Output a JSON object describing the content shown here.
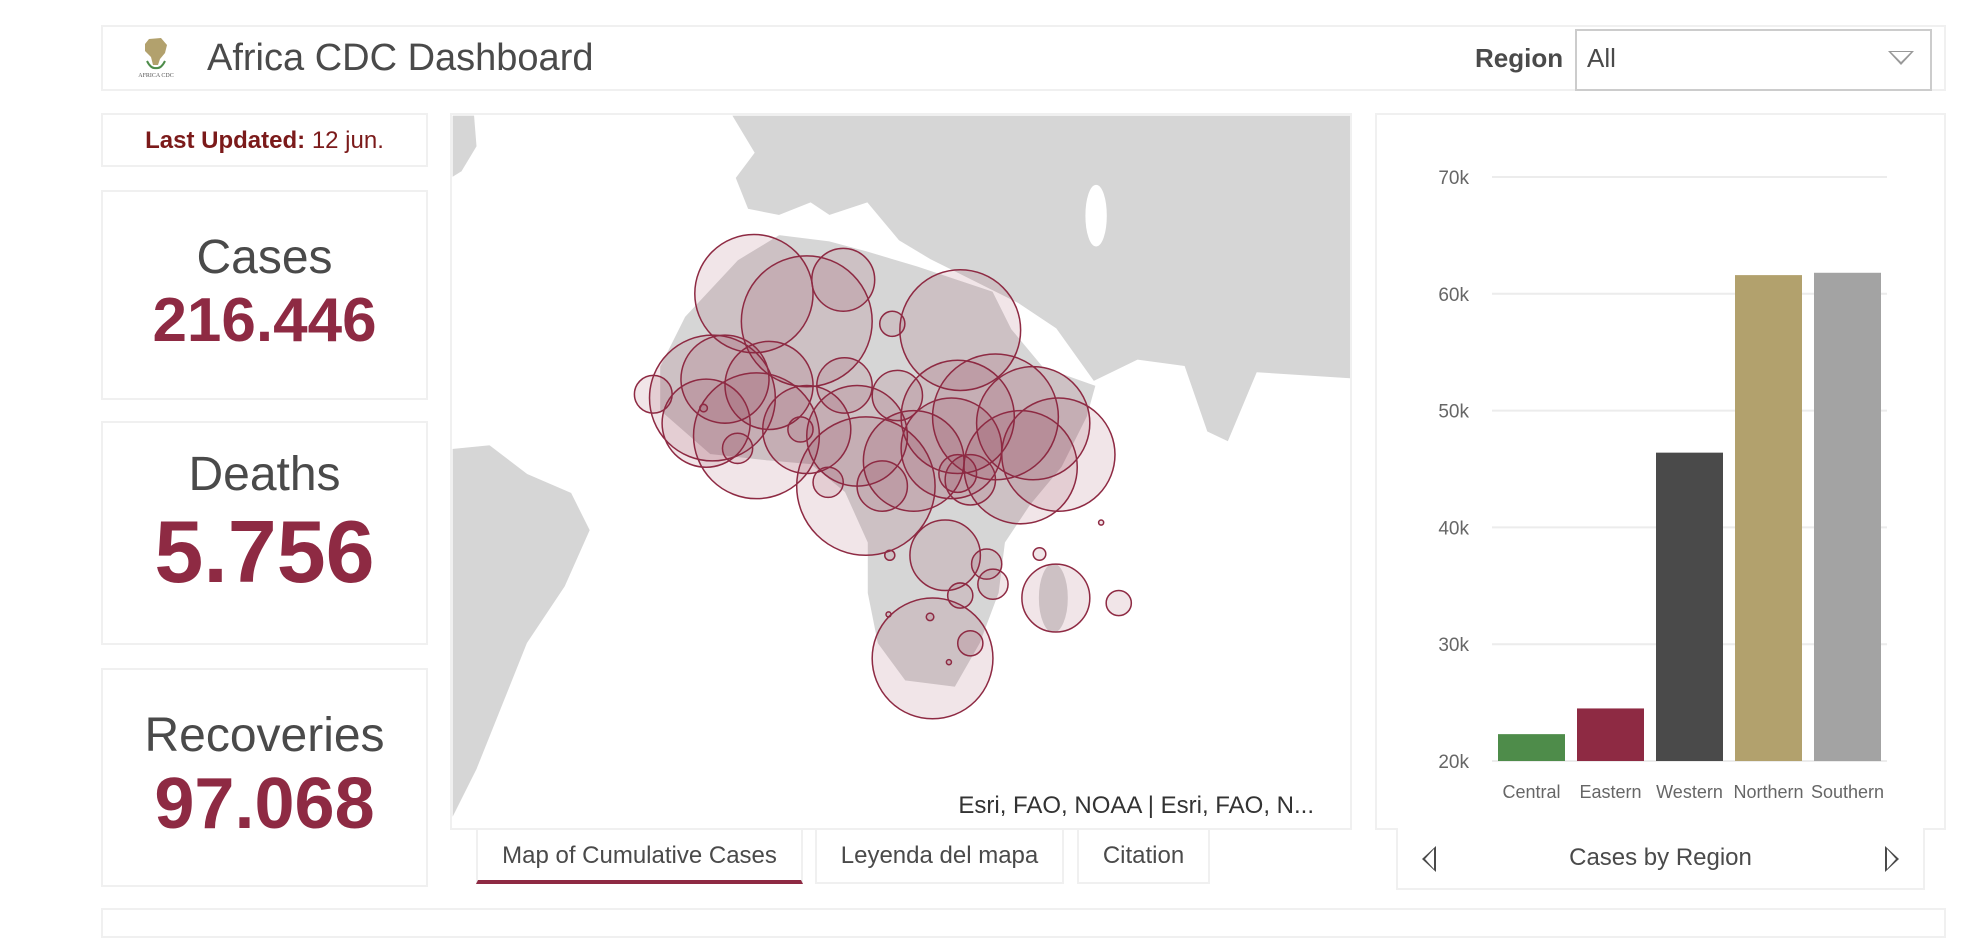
{
  "header": {
    "title": "Africa CDC Dashboard",
    "logo_text": "AFRICA CDC",
    "region_label": "Region",
    "region_value": "All"
  },
  "updated": {
    "label": "Last Updated:",
    "value": "12 jun."
  },
  "stats": {
    "cases": {
      "label": "Cases",
      "value": "216.446"
    },
    "deaths": {
      "label": "Deaths",
      "value": "5.756"
    },
    "recoveries": {
      "label": "Recoveries",
      "value": "97.068"
    }
  },
  "map": {
    "attribution": "Esri, FAO, NOAA | Esri, FAO, N...",
    "land_color": "#d6d6d6",
    "bubble_color": "#8e2a43"
  },
  "tabs": [
    {
      "label": "Map of Cumulative Cases",
      "active": true
    },
    {
      "label": "Leyenda del mapa"
    },
    {
      "label": "Citation"
    }
  ],
  "chart_footer": {
    "title": "Cases by Region",
    "prev_icon": "triangle-left-icon",
    "next_icon": "triangle-right-icon"
  },
  "chart_data": {
    "type": "bar",
    "categories": [
      "Central",
      "Eastern",
      "Western",
      "Northern",
      "Southern"
    ],
    "values": [
      22300,
      24500,
      46400,
      61600,
      61800
    ],
    "colors": [
      "#4e8c4a",
      "#8e2a43",
      "#4a4a4a",
      "#b2a16d",
      "#a3a3a3"
    ],
    "ylim": [
      20000,
      70000
    ],
    "yticks": [
      "20k",
      "30k",
      "40k",
      "50k",
      "60k",
      "70k"
    ],
    "grid": true,
    "xlabel": "",
    "ylabel": ""
  }
}
